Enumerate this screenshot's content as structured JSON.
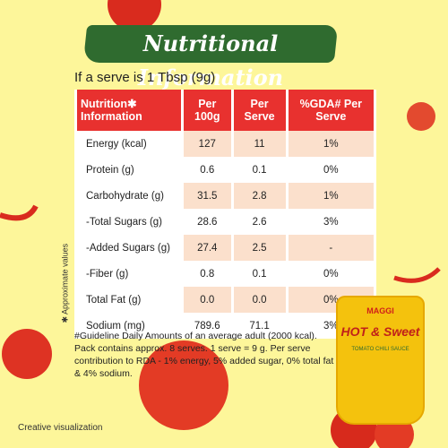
{
  "header": {
    "title": "Nutritional Information",
    "subtitle": "If a serve is 1 Tbsp (9g)"
  },
  "table": {
    "columns": [
      "Nutrition✱ Information",
      "Per 100g",
      "Per Serve",
      "%GDA# Per Serve"
    ],
    "rows": [
      [
        "Energy (kcal)",
        "127",
        "11",
        "1%"
      ],
      [
        "Protein (g)",
        "0.6",
        "0.1",
        "0%"
      ],
      [
        "Carbohydrate (g)",
        "31.5",
        "2.8",
        "1%"
      ],
      [
        "-Total Sugars (g)",
        "28.6",
        "2.6",
        "3%"
      ],
      [
        "-Added Sugars (g)",
        "27.4",
        "2.5",
        "-"
      ],
      [
        "-Fiber (g)",
        "0.8",
        "0.1",
        "0%"
      ],
      [
        "Total Fat (g)",
        "0.0",
        "0.0",
        "0%"
      ],
      [
        "Sodium (mg)",
        "789.6",
        "71.1",
        "3%"
      ]
    ]
  },
  "footnote": "#Guideline Daily Amounts of an average adult (2000 kcal). Pack contains approx. 8 serves. 1 serve = 9 g. Per serve contribution to RDA - 1% energy, 5% added sugar, 0% total fat & 4% sodium.",
  "side_note": "✱ Approximate values",
  "disclaimer": "Creative visualization",
  "product": {
    "brand": "MAGGI",
    "name": "HOT & Sweet",
    "variant": "TOMATO CHILI SAUCE"
  }
}
